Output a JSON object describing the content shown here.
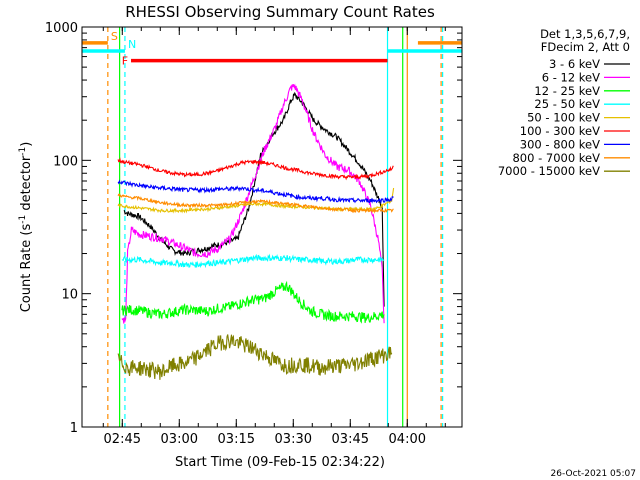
{
  "chart_data": {
    "type": "line",
    "title": "RHESSI Observing Summary Count Rates",
    "xlabel": "Start Time (09-Feb-15 02:34:22)",
    "ylabel_main": "Count Rate (s",
    "ylabel_sup1": "-1",
    "ylabel_mid": " detector",
    "ylabel_sup2": "-1",
    "ylabel_end": ")",
    "x_unit": "minutes after 02:34:22",
    "xlim": [
      0,
      100
    ],
    "ylim": [
      1,
      1000
    ],
    "yscale": "log",
    "x_ticks": [
      {
        "label": "02:45",
        "x": 10.6
      },
      {
        "label": "03:00",
        "x": 25.6
      },
      {
        "label": "03:15",
        "x": 40.6
      },
      {
        "label": "03:30",
        "x": 55.6
      },
      {
        "label": "03:45",
        "x": 70.6
      },
      {
        "label": "04:00",
        "x": 85.6
      }
    ],
    "y_ticks": [
      {
        "label": "1",
        "y": 1
      },
      {
        "label": "10",
        "y": 10
      },
      {
        "label": "100",
        "y": 100
      },
      {
        "label": "1000",
        "y": 1000
      }
    ],
    "legend_header": [
      "Det 1,3,5,6,7,9,",
      "FDecim 2, Att 0"
    ],
    "legend_position": "outside-right",
    "series": [
      {
        "name": "3 - 6 keV",
        "color": "#000000",
        "x": [
          11,
          12,
          15,
          18,
          21,
          24,
          27,
          30,
          33,
          35,
          38,
          41,
          44,
          47,
          50,
          53,
          55,
          56,
          58,
          61,
          64,
          67,
          70,
          73,
          76,
          79,
          79.5
        ],
        "y": [
          42,
          40,
          38,
          32,
          25,
          21,
          20,
          21,
          22,
          23,
          24,
          26,
          45,
          110,
          155,
          200,
          280,
          310,
          270,
          200,
          170,
          150,
          120,
          95,
          70,
          45,
          8
        ]
      },
      {
        "name": "6 - 12 keV",
        "color": "#ff00ff",
        "x": [
          10.5,
          11.5,
          12,
          13,
          15,
          18,
          21,
          24,
          27,
          30,
          33,
          36,
          39,
          42,
          45,
          48,
          51,
          53,
          55,
          56,
          58,
          61,
          64,
          67,
          70,
          73,
          76,
          78,
          79,
          79.5
        ],
        "y": [
          6.5,
          6.3,
          20,
          30,
          28,
          27,
          26,
          24,
          22,
          20,
          20,
          22,
          26,
          40,
          70,
          120,
          180,
          260,
          350,
          360,
          280,
          160,
          110,
          90,
          85,
          70,
          45,
          25,
          15,
          6
        ]
      },
      {
        "name": "12 - 25 keV",
        "color": "#00ff00",
        "x": [
          10.5,
          12,
          15,
          18,
          21,
          24,
          27,
          30,
          33,
          36,
          39,
          42,
          45,
          48,
          51,
          54,
          57,
          60,
          63,
          66,
          69,
          72,
          75,
          79.5
        ],
        "y": [
          7.5,
          7.6,
          7.5,
          7.2,
          7.0,
          7.3,
          7.6,
          7.5,
          7.4,
          7.8,
          8.0,
          8.5,
          9.0,
          9.2,
          10.5,
          11.5,
          9.0,
          7.5,
          7.0,
          6.8,
          6.8,
          6.8,
          6.6,
          7.0
        ]
      },
      {
        "name": "25 - 50 keV",
        "color": "#00ffff",
        "x": [
          10.5,
          12,
          15,
          18,
          21,
          24,
          27,
          30,
          33,
          36,
          39,
          42,
          45,
          48,
          51,
          54,
          57,
          60,
          63,
          66,
          69,
          72,
          75,
          78,
          79.5
        ],
        "y": [
          18,
          18,
          18,
          17.5,
          17,
          17,
          16.5,
          16.5,
          17,
          17,
          17.5,
          18,
          18.5,
          18.5,
          18.5,
          18.5,
          18,
          18,
          17.5,
          17.5,
          17.5,
          18,
          18,
          18,
          18
        ]
      },
      {
        "name": "50 - 100 keV",
        "color": "#e6c000",
        "x": [
          9.5,
          12,
          15,
          18,
          21,
          24,
          27,
          30,
          33,
          36,
          39,
          42,
          45,
          48,
          51,
          54,
          57,
          60,
          63,
          66,
          69,
          72,
          75,
          78,
          81.5,
          82
        ],
        "y": [
          46,
          45,
          44,
          43,
          42,
          42,
          42,
          43,
          43,
          44,
          45,
          46,
          47,
          47,
          46,
          45,
          45,
          44,
          44,
          43,
          43,
          43,
          43,
          44,
          50,
          62
        ]
      },
      {
        "name": "100 - 300 keV",
        "color": "#ff0000",
        "x": [
          9.5,
          12,
          15,
          18,
          21,
          24,
          27,
          30,
          33,
          36,
          39,
          42,
          45,
          48,
          51,
          54,
          57,
          60,
          63,
          66,
          69,
          72,
          75,
          78,
          81.5,
          82
        ],
        "y": [
          100,
          96,
          93,
          88,
          83,
          80,
          78,
          78,
          80,
          84,
          90,
          96,
          98,
          96,
          92,
          87,
          84,
          80,
          78,
          76,
          75,
          75,
          76,
          80,
          86,
          90
        ]
      },
      {
        "name": "300 - 800 keV",
        "color": "#0000ff",
        "x": [
          9.5,
          12,
          15,
          18,
          21,
          24,
          27,
          30,
          33,
          36,
          39,
          42,
          45,
          48,
          51,
          54,
          57,
          60,
          63,
          66,
          69,
          72,
          75,
          78,
          81.5,
          82
        ],
        "y": [
          70,
          67,
          65,
          63,
          62,
          61,
          60,
          60,
          60,
          61,
          61,
          62,
          60,
          59,
          57,
          55,
          53,
          52,
          52,
          51,
          50,
          50,
          50,
          50,
          51,
          53
        ]
      },
      {
        "name": "800 - 7000 keV",
        "color": "#ff8c00",
        "x": [
          9.5,
          12,
          15,
          18,
          21,
          24,
          27,
          30,
          33,
          36,
          39,
          42,
          45,
          48,
          51,
          54,
          57,
          60,
          63,
          66,
          69,
          72,
          75,
          78,
          81.5,
          82
        ],
        "y": [
          55,
          53,
          52,
          50,
          48,
          47,
          46,
          46,
          46,
          46,
          47,
          48,
          49,
          49,
          48,
          47,
          46,
          45,
          44,
          43,
          43,
          42,
          42,
          42,
          42,
          43
        ]
      },
      {
        "name": "7000 - 15000 keV",
        "color": "#808000",
        "x": [
          9.5,
          12,
          15,
          18,
          21,
          24,
          27,
          30,
          33,
          36,
          39,
          42,
          45,
          48,
          51,
          54,
          57,
          60,
          63,
          66,
          69,
          72,
          75,
          78,
          81.5
        ],
        "y": [
          3.2,
          2.8,
          2.8,
          2.7,
          2.6,
          2.9,
          3.0,
          3.3,
          3.8,
          4.3,
          4.5,
          4.2,
          3.9,
          3.5,
          3.1,
          2.9,
          3.0,
          2.9,
          2.8,
          2.9,
          2.9,
          3.0,
          3.2,
          3.4,
          3.6
        ]
      }
    ],
    "flags": [
      {
        "label": "S",
        "color": "#ff8c00",
        "x_end": 6.8,
        "x_start": 88.4,
        "y": 760
      },
      {
        "label": "N",
        "color": "#00ffff",
        "x_end": 11.3,
        "x_start": 80.4,
        "y": 660
      },
      {
        "label": "F",
        "color": "#ff0000",
        "x_start": 12.9,
        "x_end": 80.4,
        "y": 560
      }
    ],
    "vertical_markers": [
      {
        "x": 6.8,
        "color": "#ff8c00",
        "dash": true
      },
      {
        "x": 9.9,
        "color": "#00ff00",
        "dash": false
      },
      {
        "x": 11.3,
        "color": "#00ffff",
        "dash": true
      },
      {
        "x": 80.4,
        "color": "#00ffff",
        "dash": false
      },
      {
        "x": 84.4,
        "color": "#00ff00",
        "dash": false
      },
      {
        "x": 85.6,
        "color": "#ff8c00",
        "dash": false
      },
      {
        "x": 94.5,
        "color": "#ff8c00",
        "dash": true
      },
      {
        "x": 94.9,
        "color": "#00ffff",
        "dash": true
      }
    ]
  },
  "footer": {
    "timestamp": "26-Oct-2021 05:07"
  }
}
